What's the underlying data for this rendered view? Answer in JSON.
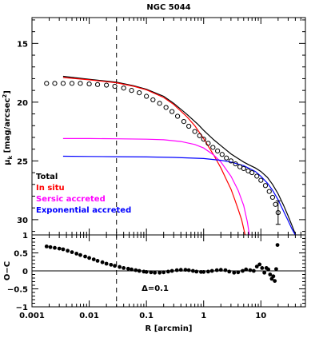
{
  "chart_data": [
    {
      "type": "line",
      "title": "NGC 5044",
      "xlabel": "R [arcmin]",
      "ylabel": "μ_k [mag/arcsec²]",
      "ylabel_main": "μ",
      "ylabel_sub": "k",
      "ylabel_rest": " [mag/arcsec",
      "ylabel_sup": "2",
      "ylabel_close": "]",
      "x_scale": "log",
      "xlim": [
        0.001,
        60
      ],
      "ylim": [
        31.3,
        12.8
      ],
      "y_inverted": true,
      "yticks": [
        15,
        20,
        25,
        30
      ],
      "ytick_labels": [
        "15",
        "20",
        "25",
        "30"
      ],
      "vline_x": 0.03,
      "legend": [
        {
          "label": "Total",
          "color": "#000000"
        },
        {
          "label": "In situ",
          "color": "#ff0000"
        },
        {
          "label": "Sersic accreted",
          "color": "#ff00ff"
        },
        {
          "label": "Exponential accreted",
          "color": "#0000ff"
        }
      ],
      "series": [
        {
          "name": "Total",
          "color": "#000000",
          "x": [
            0.0035,
            0.01,
            0.03,
            0.06,
            0.1,
            0.2,
            0.3,
            0.5,
            0.8,
            1.0,
            1.5,
            2.0,
            3.0,
            4.0,
            5.0,
            6.0,
            8.0,
            10.0,
            13.0,
            16.0,
            20.0,
            25.0,
            30.0,
            35.0,
            42.0
          ],
          "values": [
            17.8,
            18.05,
            18.3,
            18.6,
            18.9,
            19.5,
            20.1,
            21.0,
            21.9,
            22.4,
            23.2,
            23.7,
            24.4,
            24.8,
            25.1,
            25.3,
            25.6,
            25.9,
            26.4,
            27.0,
            27.8,
            28.8,
            29.7,
            30.5,
            31.5
          ]
        },
        {
          "name": "In situ",
          "color": "#ff0000",
          "x": [
            0.0035,
            0.01,
            0.03,
            0.06,
            0.1,
            0.2,
            0.3,
            0.5,
            0.7,
            1.0,
            1.5,
            2.0,
            2.5,
            3.0,
            3.5,
            4.0,
            4.6,
            5.3
          ],
          "values": [
            17.9,
            18.1,
            18.35,
            18.65,
            18.95,
            19.6,
            20.2,
            21.2,
            22.0,
            23.1,
            24.5,
            25.6,
            26.6,
            27.4,
            28.3,
            29.1,
            30.0,
            31.3
          ]
        },
        {
          "name": "Sersic accreted",
          "color": "#ff00ff",
          "x": [
            0.0035,
            0.01,
            0.03,
            0.1,
            0.2,
            0.4,
            0.7,
            1.0,
            1.5,
            2.0,
            3.0,
            4.0,
            5.0,
            5.8,
            6.3
          ],
          "values": [
            23.1,
            23.1,
            23.12,
            23.15,
            23.2,
            23.35,
            23.6,
            23.9,
            24.5,
            25.1,
            26.3,
            27.5,
            28.8,
            30.2,
            31.3
          ]
        },
        {
          "name": "Exponential accreted",
          "color": "#0000ff",
          "x": [
            0.0035,
            0.01,
            0.03,
            0.1,
            0.3,
            1.0,
            2.0,
            3.0,
            5.0,
            8.0,
            10.0,
            13.0,
            16.0,
            20.0,
            25.0,
            30.0,
            35.0,
            42.0
          ],
          "values": [
            24.6,
            24.62,
            24.64,
            24.66,
            24.7,
            24.8,
            24.95,
            25.1,
            25.4,
            25.9,
            26.3,
            26.9,
            27.5,
            28.3,
            29.3,
            30.1,
            30.8,
            31.5
          ]
        }
      ],
      "points": {
        "name": "data",
        "x": [
          0.0018,
          0.0025,
          0.0035,
          0.005,
          0.007,
          0.01,
          0.014,
          0.02,
          0.028,
          0.04,
          0.055,
          0.075,
          0.1,
          0.13,
          0.17,
          0.22,
          0.28,
          0.35,
          0.45,
          0.55,
          0.7,
          0.85,
          1.0,
          1.2,
          1.45,
          1.75,
          2.1,
          2.5,
          3.0,
          3.6,
          4.3,
          5.0,
          6.0,
          7.0,
          8.5,
          10.0,
          12.0,
          14.0,
          16.0,
          18.0,
          20.0
        ],
        "y": [
          18.4,
          18.4,
          18.4,
          18.4,
          18.4,
          18.45,
          18.5,
          18.55,
          18.65,
          18.8,
          19.0,
          19.2,
          19.5,
          19.8,
          20.1,
          20.45,
          20.8,
          21.2,
          21.65,
          22.05,
          22.5,
          22.85,
          23.15,
          23.5,
          23.85,
          24.15,
          24.45,
          24.75,
          25.0,
          25.25,
          25.5,
          25.65,
          25.85,
          26.0,
          26.3,
          26.65,
          27.1,
          27.6,
          28.1,
          28.7,
          29.4
        ],
        "error_bar": {
          "x": 20.0,
          "y": 29.4,
          "low": 28.4,
          "high": 30.4
        }
      },
      "legend_placement": "lower-left"
    },
    {
      "type": "scatter",
      "xlabel": "R [arcmin]",
      "ylabel": "O−C",
      "x_scale": "log",
      "xlim": [
        0.001,
        60
      ],
      "ylim": [
        -1,
        1
      ],
      "yticks": [
        -1,
        -0.5,
        0,
        0.5,
        1
      ],
      "ytick_labels": [
        "−1",
        "−0.5",
        "0",
        "0.5",
        "1"
      ],
      "xticks": [
        0.001,
        0.01,
        0.1,
        1,
        10
      ],
      "xtick_labels": [
        "0.001",
        "0.01",
        "0.1",
        "1",
        "10"
      ],
      "annotation": "Δ=0.1",
      "hline_y": 0,
      "vline_x": 0.03,
      "points": {
        "x": [
          0.0018,
          0.0021,
          0.0025,
          0.003,
          0.0035,
          0.0042,
          0.005,
          0.006,
          0.007,
          0.0085,
          0.01,
          0.012,
          0.014,
          0.017,
          0.02,
          0.024,
          0.028,
          0.034,
          0.04,
          0.048,
          0.055,
          0.065,
          0.075,
          0.09,
          0.1,
          0.12,
          0.14,
          0.17,
          0.2,
          0.24,
          0.28,
          0.34,
          0.4,
          0.48,
          0.55,
          0.65,
          0.75,
          0.9,
          1.0,
          1.2,
          1.4,
          1.7,
          2.0,
          2.4,
          2.8,
          3.4,
          4.0,
          4.8,
          5.5,
          6.5,
          7.5,
          8.5,
          9.5,
          10.5,
          11.5,
          12.5,
          13.5,
          14.5,
          15.5,
          16.5,
          17.5,
          18.5,
          19.5
        ],
        "y": [
          0.68,
          0.66,
          0.64,
          0.62,
          0.6,
          0.56,
          0.52,
          0.48,
          0.44,
          0.4,
          0.36,
          0.32,
          0.28,
          0.24,
          0.2,
          0.17,
          0.14,
          0.11,
          0.08,
          0.06,
          0.04,
          0.02,
          0.0,
          -0.02,
          -0.03,
          -0.04,
          -0.05,
          -0.05,
          -0.04,
          -0.02,
          0.0,
          0.02,
          0.03,
          0.03,
          0.02,
          0.0,
          -0.02,
          -0.03,
          -0.03,
          -0.02,
          0.0,
          0.02,
          0.03,
          0.02,
          -0.02,
          -0.05,
          -0.04,
          0.0,
          0.04,
          0.02,
          0.0,
          0.12,
          0.18,
          0.08,
          -0.05,
          0.08,
          0.04,
          -0.1,
          -0.22,
          -0.15,
          -0.28,
          0.05,
          0.72
        ]
      }
    }
  ]
}
